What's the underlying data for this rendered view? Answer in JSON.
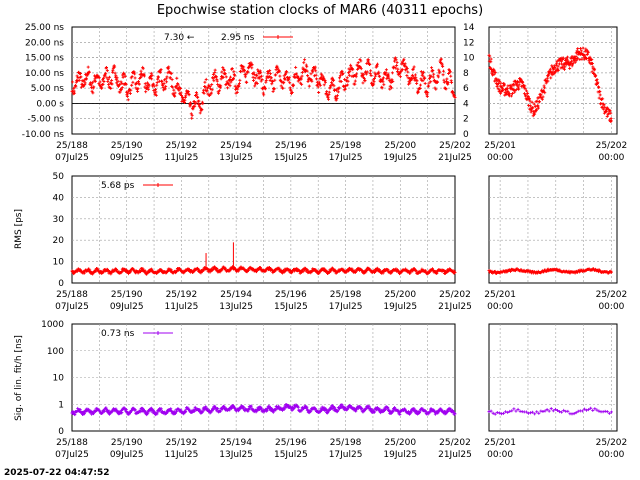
{
  "header": {
    "title": "Epochwise station clocks of MAR6 (40311 epochs)"
  },
  "footer": {
    "timestamp": "2025-07-22 04:47:52"
  },
  "colors": {
    "clock": "#ff0000",
    "rms": "#ff0000",
    "sigma": "#a000f0",
    "grid": "#a0a0a0"
  },
  "x_ticks_main": [
    {
      "doy": "25/188",
      "date": "07Jul25"
    },
    {
      "doy": "25/190",
      "date": "09Jul25"
    },
    {
      "doy": "25/192",
      "date": "11Jul25"
    },
    {
      "doy": "25/194",
      "date": "13Jul25"
    },
    {
      "doy": "25/196",
      "date": "15Jul25"
    },
    {
      "doy": "25/198",
      "date": "17Jul25"
    },
    {
      "doy": "25/200",
      "date": "19Jul25"
    },
    {
      "doy": "25/202",
      "date": "21Jul25"
    }
  ],
  "x_ticks_zoom": [
    {
      "doy": "25/201",
      "time": "00:00"
    },
    {
      "doy": "25/202",
      "time": "00:00"
    }
  ],
  "chart_data": [
    {
      "type": "scatter",
      "panel": "clock",
      "ylabel": "",
      "y_ticks_left": [
        "25.00 ns",
        "20.00 ns",
        "15.00 ns",
        "10.00 ns",
        "5.00 ns",
        "0.00  s",
        "-5.00 ns",
        "-10.00 ns"
      ],
      "y_ticks_right": [
        "14",
        "12",
        "10",
        "8",
        "6",
        "4",
        "2",
        "0"
      ],
      "ylim_left": [
        -10,
        25
      ],
      "ylim_right": [
        0,
        14
      ],
      "annotations": [
        "7.30 ←",
        "2.95 ns"
      ],
      "series": [
        {
          "name": "2.95 ns",
          "x_days": [
            188,
            188.5,
            189,
            189.5,
            190,
            190.5,
            191,
            191.5,
            192,
            192.4,
            192.7,
            193,
            193.5,
            194,
            194.5,
            195,
            195.5,
            196,
            196.5,
            197,
            197.5,
            198,
            198.5,
            199,
            199.5,
            200,
            200.5,
            201,
            201.5,
            202
          ],
          "values": [
            6,
            8,
            7,
            9,
            5,
            8,
            6,
            9,
            3,
            -1,
            0,
            6,
            8,
            7,
            12,
            6,
            9,
            7,
            10,
            8,
            4,
            8,
            11,
            10,
            7,
            13,
            8,
            6,
            11,
            4
          ]
        },
        {
          "name": "zoom",
          "x_days": [
            200.9,
            201,
            201.1,
            201.2,
            201.3,
            201.4,
            201.5,
            201.6,
            201.7,
            201.8,
            201.9,
            202
          ],
          "values": [
            10,
            7,
            5,
            6,
            4,
            6,
            8,
            10,
            11,
            9,
            5,
            3
          ]
        }
      ],
      "grid": true
    },
    {
      "type": "scatter",
      "panel": "rms",
      "ylabel": "RMS [ps]",
      "y_ticks": [
        "50",
        "40",
        "30",
        "20",
        "10",
        "0"
      ],
      "ylim": [
        0,
        50
      ],
      "legend": "5.68 ps",
      "series": [
        {
          "name": "5.68 ps",
          "x_days": [
            188,
            189,
            190,
            191,
            192,
            193,
            194,
            195,
            196,
            197,
            198,
            199,
            200,
            201,
            202
          ],
          "values": [
            5.5,
            5.5,
            5.6,
            5.4,
            5.7,
            6.2,
            6.4,
            6.1,
            5.8,
            5.6,
            5.9,
            5.7,
            5.6,
            5.5,
            5.8
          ],
          "outliers": [
            {
              "x": 192.9,
              "y": 14
            },
            {
              "x": 193.9,
              "y": 19
            }
          ]
        }
      ],
      "grid": true
    },
    {
      "type": "scatter",
      "panel": "sigma",
      "ylabel": "Sig. of lin. fit/h [ns]",
      "y_ticks": [
        "1000",
        "100",
        "10",
        "1",
        "0"
      ],
      "scale": "log",
      "legend": "0.73 ns",
      "series": [
        {
          "name": "0.73 ns",
          "x_days": [
            188,
            189,
            190,
            191,
            192,
            193,
            194,
            195,
            196,
            197,
            198,
            199,
            200,
            201,
            202
          ],
          "values": [
            0.73,
            0.73,
            0.74,
            0.72,
            0.75,
            0.8,
            0.85,
            0.78,
            0.9,
            0.76,
            0.88,
            0.8,
            0.75,
            0.73,
            0.74
          ]
        }
      ],
      "grid": true
    }
  ]
}
